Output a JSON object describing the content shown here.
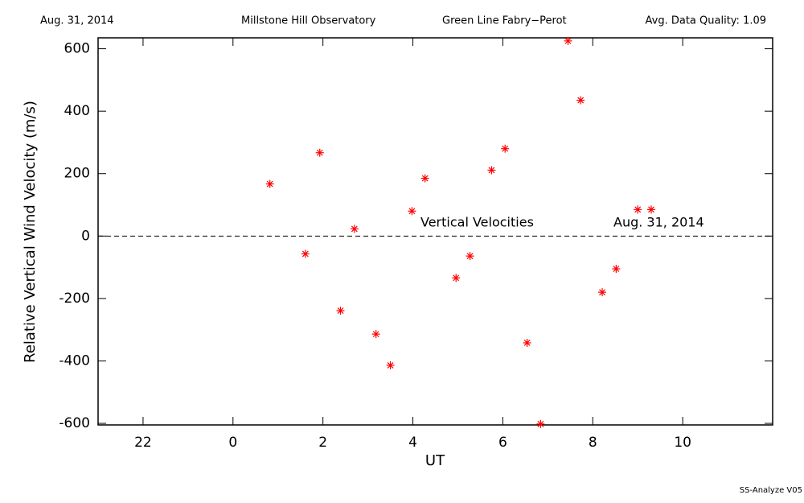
{
  "chart_data": {
    "type": "scatter",
    "header": [
      "Aug. 31, 2014",
      "Millstone Hill Observatory",
      "Green Line Fabry−Perot",
      "Avg. Data Quality: 1.09"
    ],
    "x_label": "UT",
    "y_label": "Relative Vertical Wind Velocity (m/s)",
    "annotations": [
      "Vertical Velocities",
      "Aug. 31, 2014"
    ],
    "footer": "SS-Analyze V05",
    "color": "#ff0000",
    "reference_line": 0,
    "x": [
      0.82,
      1.61,
      1.93,
      2.39,
      2.7,
      3.18,
      3.5,
      3.98,
      4.27,
      4.96,
      5.27,
      5.75,
      6.05,
      6.54,
      6.84,
      7.45,
      7.73,
      8.21,
      8.52,
      9.0,
      9.3
    ],
    "values": [
      167,
      -57,
      267,
      -239,
      23,
      -314,
      -414,
      80,
      185,
      -134,
      -64,
      211,
      280,
      -342,
      -602,
      625,
      435,
      -180,
      -105,
      85,
      85
    ],
    "xlim": [
      -3,
      12
    ],
    "xticks": [
      {
        "value": -2,
        "label": "22"
      },
      0,
      2,
      4,
      6,
      8,
      10
    ],
    "ylim": [
      -605,
      635
    ],
    "yticks": [
      -600,
      -400,
      -200,
      0,
      200,
      400,
      600
    ]
  }
}
